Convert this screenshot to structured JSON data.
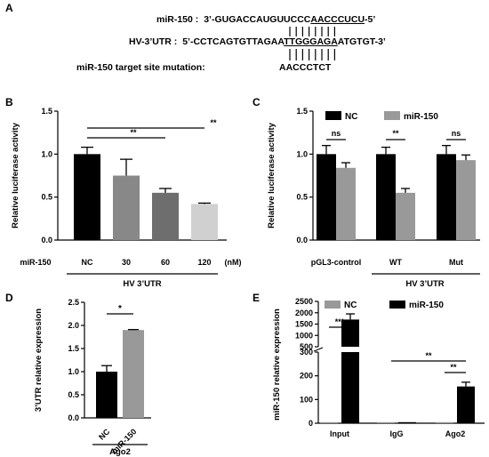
{
  "panel_a": {
    "letter": "A",
    "mir_label": "miR-150 :",
    "mir_seq_pre": "3’-GUGACCAUGUUCCC",
    "mir_seq_ul": "AACCCUCU",
    "mir_seq_post": "-5’",
    "utr_label": "HV-3’UTR :",
    "utr_seq_pre": "5’-CCTCAGTGTTAGAA",
    "utr_seq_ul": "TTGGGAGA",
    "utr_seq_post": "ATGTGT-3’",
    "mutation_label": "miR-150 target site mutation:",
    "mutation_seq": "AACCCTCT"
  },
  "chart_data": [
    {
      "panel": "B",
      "type": "bar",
      "ylabel": "Relative luciferase activity",
      "ylim": [
        0,
        1.5
      ],
      "yticks": [
        "0.0",
        "0.5",
        "1.0",
        "1.5"
      ],
      "row_label": "miR-150",
      "unit": "(nM)",
      "categories": [
        "NC",
        "30",
        "60",
        "120"
      ],
      "values": [
        1.0,
        0.75,
        0.55,
        0.42
      ],
      "errors": [
        0.08,
        0.19,
        0.05,
        0.01
      ],
      "colors": [
        "#000000",
        "#888888",
        "#6e6e6e",
        "#d0d0d0"
      ],
      "significance": [
        "**",
        "**"
      ],
      "group_label": "HV  3’UTR"
    },
    {
      "panel": "C",
      "type": "bar",
      "ylabel": "Relative luciferase activity",
      "ylim": [
        0,
        1.5
      ],
      "yticks": [
        "0.0",
        "0.5",
        "1.0",
        "1.5"
      ],
      "categories": [
        "pGL3-control",
        "WT",
        "Mut"
      ],
      "series": [
        {
          "name": "NC",
          "values": [
            1.0,
            1.0,
            1.0
          ],
          "errors": [
            0.1,
            0.08,
            0.1
          ],
          "color": "#000000"
        },
        {
          "name": "miR-150",
          "values": [
            0.84,
            0.55,
            0.93
          ],
          "errors": [
            0.06,
            0.05,
            0.06
          ],
          "color": "#999999"
        }
      ],
      "significance": [
        "ns",
        "**",
        "ns"
      ],
      "group_label": "HV 3’UTR"
    },
    {
      "panel": "D",
      "type": "bar",
      "ylabel": "3’UTR relative expression",
      "ylim": [
        0,
        2.5
      ],
      "yticks": [
        "0.0",
        "0.5",
        "1.0",
        "1.5",
        "2.0",
        "2.5"
      ],
      "categories": [
        "NC",
        "miR-150"
      ],
      "values": [
        1.0,
        1.9
      ],
      "errors": [
        0.13,
        0.01
      ],
      "colors": [
        "#000000",
        "#999999"
      ],
      "significance": [
        "*"
      ],
      "group_label": "Ago2"
    },
    {
      "panel": "E",
      "type": "bar",
      "ylabel": "miR-150 relative expression",
      "ylim": [
        0,
        2500
      ],
      "axis_break": [
        300,
        500
      ],
      "yticks": [
        "0",
        "100",
        "200",
        "300",
        "500",
        "1000",
        "1500",
        "2000",
        "2500"
      ],
      "categories": [
        "Input",
        "IgG",
        "Ago2"
      ],
      "series": [
        {
          "name": "NC",
          "values": [
            1,
            1,
            1
          ],
          "errors": [
            0,
            0,
            0
          ],
          "color": "#999999"
        },
        {
          "name": "miR-150",
          "values": [
            1700,
            1,
            155
          ],
          "errors": [
            250,
            0,
            18
          ],
          "color": "#000000"
        }
      ],
      "significance": [
        "***",
        "**",
        "**"
      ]
    }
  ]
}
